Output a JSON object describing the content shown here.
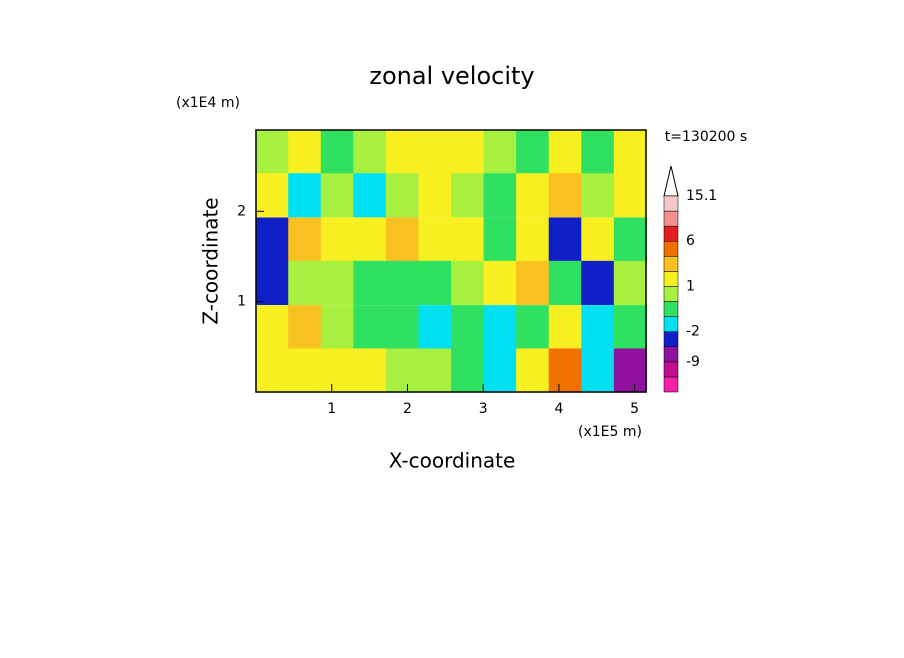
{
  "chart_data": {
    "type": "contour",
    "title": "zonal velocity",
    "x_label": "X-coordinate",
    "y_label": "Z-coordinate",
    "x_unit": "(x1E5 m)",
    "y_unit": "(x1E4 m)",
    "time_label": "t=130200 s",
    "xlim": [
      0,
      5.15
    ],
    "ylim": [
      0,
      2.9
    ],
    "xticks": [
      1,
      2,
      3,
      4,
      5
    ],
    "yticks": [
      1,
      2
    ],
    "x": [
      0.21,
      0.64,
      1.07,
      1.5,
      1.93,
      2.36,
      2.79,
      3.22,
      3.65,
      4.08,
      4.51,
      4.94
    ],
    "z": [
      2.66,
      2.18,
      1.69,
      1.21,
      0.72,
      0.24
    ],
    "values": [
      [
        0.5,
        1.5,
        -0.5,
        0.5,
        1.5,
        1.5,
        1.5,
        0.5,
        -0.5,
        1.5,
        -0.5,
        1.5
      ],
      [
        1.5,
        -1.5,
        0.5,
        -1.5,
        0.5,
        1.5,
        0.5,
        -0.5,
        1.5,
        3,
        0.5,
        1.5
      ],
      [
        -3,
        3,
        1.5,
        1.5,
        3,
        1.5,
        1.5,
        -0.5,
        1.5,
        -3,
        1.5,
        -0.5
      ],
      [
        -4,
        0.5,
        0.5,
        -0.5,
        -0.5,
        -0.5,
        0.5,
        1.5,
        3,
        -0.5,
        -3,
        0.5
      ],
      [
        1.5,
        3,
        0.5,
        -0.5,
        -0.5,
        -1.5,
        -0.5,
        -1.5,
        -0.5,
        1.5,
        -1.5,
        -0.5
      ],
      [
        1.5,
        1.5,
        1.5,
        1.5,
        0.5,
        0.5,
        -0.5,
        -1.5,
        1.5,
        4,
        -1.5,
        -6
      ]
    ],
    "levels": [
      -15,
      -12,
      -9,
      -5,
      -2,
      -1,
      0,
      1,
      2,
      4,
      6,
      9,
      12,
      15.1
    ],
    "level_colors": [
      "#f020a8",
      "#c01090",
      "#9010a0",
      "#1020c8",
      "#00e0f0",
      "#30e060",
      "#a8f040",
      "#f8f020",
      "#f8c020",
      "#f07000",
      "#e02020",
      "#f09090",
      "#f8c8c8"
    ],
    "colorbar_ticks": [
      -9,
      -2,
      1,
      6,
      15.1
    ]
  }
}
